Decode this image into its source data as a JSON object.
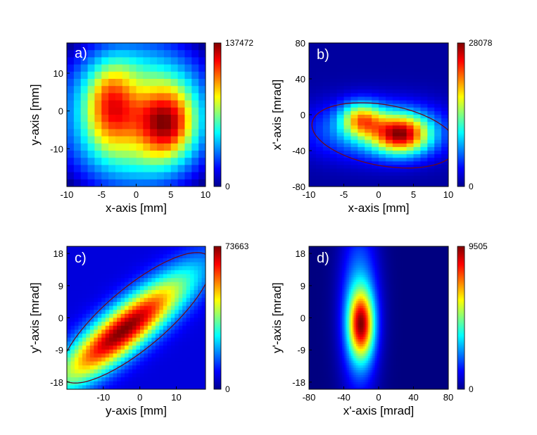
{
  "chart_data": [
    {
      "type": "heatmap",
      "panel_label": "a)",
      "xlabel": "x-axis [mm]",
      "ylabel": "y-axis [mm]",
      "xlim": [
        -10,
        10
      ],
      "ylim": [
        -20,
        18
      ],
      "xticks": [
        "-10",
        "-5",
        "0",
        "5",
        "10"
      ],
      "yticks": [
        "10",
        "0",
        "-10"
      ],
      "colorbar": {
        "min_label": "0",
        "max_label": "137472",
        "min": 0,
        "max": 137472
      },
      "grid": [
        20,
        20
      ],
      "blobs": [
        {
          "x": -3.5,
          "y": 1,
          "sx": 2.6,
          "sy": 8,
          "amp": 0.62
        },
        {
          "x": 4,
          "y": -3,
          "sx": 3.2,
          "sy": 7,
          "amp": 0.78
        }
      ],
      "background": 0.4,
      "ellipse": null
    },
    {
      "type": "heatmap",
      "panel_label": "b)",
      "xlabel": "x-axis [mm]",
      "ylabel": "x'-axis [mrad]",
      "xlim": [
        -10,
        10
      ],
      "ylim": [
        -80,
        80
      ],
      "xticks": [
        "-10",
        "-5",
        "0",
        "5",
        "10"
      ],
      "yticks": [
        "80",
        "40",
        "0",
        "-40",
        "-80"
      ],
      "colorbar": {
        "min_label": "0",
        "max_label": "28078",
        "min": 0,
        "max": 28078
      },
      "grid": [
        20,
        40
      ],
      "blobs": [
        {
          "x": 3.2,
          "y": -22,
          "sx": 2.8,
          "sy": 15,
          "amp": 0.9
        },
        {
          "x": -2.5,
          "y": -5,
          "sx": 2.0,
          "sy": 13,
          "amp": 0.62
        },
        {
          "x": 0,
          "y": -18,
          "sx": 7,
          "sy": 22,
          "amp": 0.38
        }
      ],
      "background": 0.04,
      "ellipse": {
        "cx": 0.8,
        "cy": -23,
        "rx": 10.5,
        "ry": 34,
        "tilt": -10
      }
    },
    {
      "type": "heatmap",
      "panel_label": "c)",
      "xlabel": "y-axis [mm]",
      "ylabel": "y'-axis [mrad]",
      "xlim": [
        -20,
        18
      ],
      "ylim": [
        -20,
        20
      ],
      "xticks": [
        "-10",
        "0",
        "10"
      ],
      "yticks": [
        "18",
        "9",
        "0",
        "-9",
        "-18"
      ],
      "colorbar": {
        "min_label": "0",
        "max_label": "73663",
        "min": 0,
        "max": 73663
      },
      "grid": [
        36,
        36
      ],
      "blobs": [
        {
          "x": -4.5,
          "y": -3.5,
          "along": 16,
          "across": 4.2,
          "angle": 40,
          "amp": 1.0
        }
      ],
      "background": 0.1,
      "ellipse": {
        "cx": -1,
        "cy": 0,
        "rx": 26,
        "ry": 8.5,
        "tilt": 40
      }
    },
    {
      "type": "heatmap",
      "panel_label": "d)",
      "xlabel": "x'-axis [mrad]",
      "ylabel": "y'-axis [mrad]",
      "xlim": [
        -80,
        80
      ],
      "ylim": [
        -20,
        20
      ],
      "xticks": [
        "-80",
        "-40",
        "0",
        "40",
        "80"
      ],
      "yticks": [
        "18",
        "9",
        "0",
        "-9",
        "-18"
      ],
      "colorbar": {
        "min_label": "0",
        "max_label": "9505",
        "min": 0,
        "max": 9505
      },
      "grid": [
        80,
        60
      ],
      "blobs": [
        {
          "x": -20,
          "y": -2,
          "sx": 10,
          "sy": 6.5,
          "amp": 1.0
        },
        {
          "x": -22,
          "y": 2,
          "sx": 15,
          "sy": 16,
          "amp": 0.45
        }
      ],
      "background": 0.0,
      "ellipse": null
    }
  ]
}
